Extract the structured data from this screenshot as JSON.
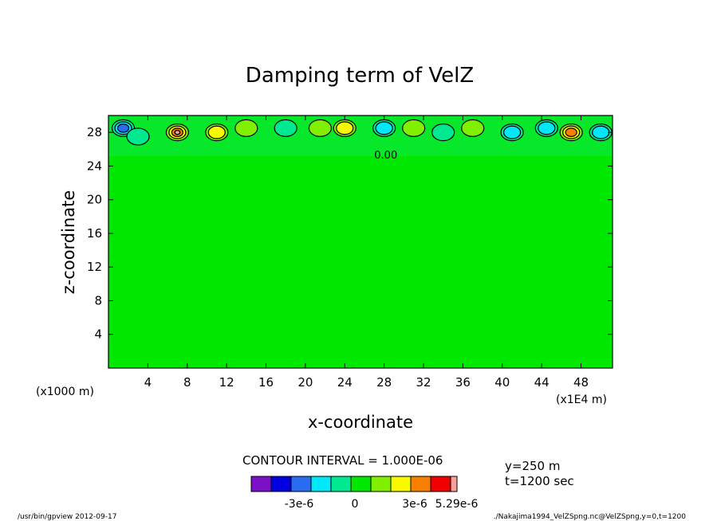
{
  "chart_data": {
    "type": "contour",
    "title": "Damping term of VelZ",
    "xlabel": "x-coordinate",
    "ylabel": "z-coordinate",
    "xlim": [
      0,
      51.2
    ],
    "ylim": [
      0,
      30
    ],
    "x_ticks": [
      "4",
      "8",
      "12",
      "16",
      "20",
      "24",
      "28",
      "32",
      "36",
      "40",
      "44",
      "48"
    ],
    "x_tick_values": [
      4,
      8,
      12,
      16,
      20,
      24,
      28,
      32,
      36,
      40,
      44,
      48
    ],
    "y_ticks": [
      "4",
      "8",
      "12",
      "16",
      "20",
      "24",
      "28"
    ],
    "y_tick_values": [
      4,
      8,
      12,
      16,
      20,
      24,
      28
    ],
    "x_unit_label": "(x1E4 m)",
    "y_unit_label": "(x1000 m)",
    "contour_interval_label": "CONTOUR INTERVAL = 1.000E-06",
    "contour_label_sample": "0.00",
    "background_level": 0,
    "colorbar": {
      "colors": [
        "#7a10c8",
        "#0000e0",
        "#2a6cf0",
        "#00e8f8",
        "#00e890",
        "#00e800",
        "#80f000",
        "#f8f800",
        "#f88000",
        "#f00000",
        "#f8a0a0"
      ],
      "labels": [
        "-3e-6",
        "0",
        "3e-6",
        "5.29e-6"
      ]
    },
    "anomalies": [
      {
        "x": 1.5,
        "z": 28.5,
        "level": -3
      },
      {
        "x": 3.0,
        "z": 27.5,
        "level": -1
      },
      {
        "x": 7.0,
        "z": 28.0,
        "level": 5
      },
      {
        "x": 11.0,
        "z": 28.0,
        "level": 2
      },
      {
        "x": 14.0,
        "z": 28.5,
        "level": 1
      },
      {
        "x": 18.0,
        "z": 28.5,
        "level": -1
      },
      {
        "x": 21.5,
        "z": 28.5,
        "level": 1
      },
      {
        "x": 24.0,
        "z": 28.5,
        "level": 2
      },
      {
        "x": 28.0,
        "z": 28.5,
        "level": -2
      },
      {
        "x": 31.0,
        "z": 28.5,
        "level": 1
      },
      {
        "x": 34.0,
        "z": 28.0,
        "level": -1
      },
      {
        "x": 37.0,
        "z": 28.5,
        "level": 1
      },
      {
        "x": 41.0,
        "z": 28.0,
        "level": -2
      },
      {
        "x": 44.5,
        "z": 28.5,
        "level": -2
      },
      {
        "x": 47.0,
        "z": 28.0,
        "level": 3
      },
      {
        "x": 50.0,
        "z": 28.0,
        "level": -2
      }
    ]
  },
  "info": {
    "y_label": "y=250 m",
    "t_label": "t=1200 sec"
  },
  "footer": {
    "left": "/usr/bin/gpview  2012-09-17",
    "right": "./Nakajima1994_VelZSpng.nc@VelZSpng,y=0,t=1200"
  }
}
